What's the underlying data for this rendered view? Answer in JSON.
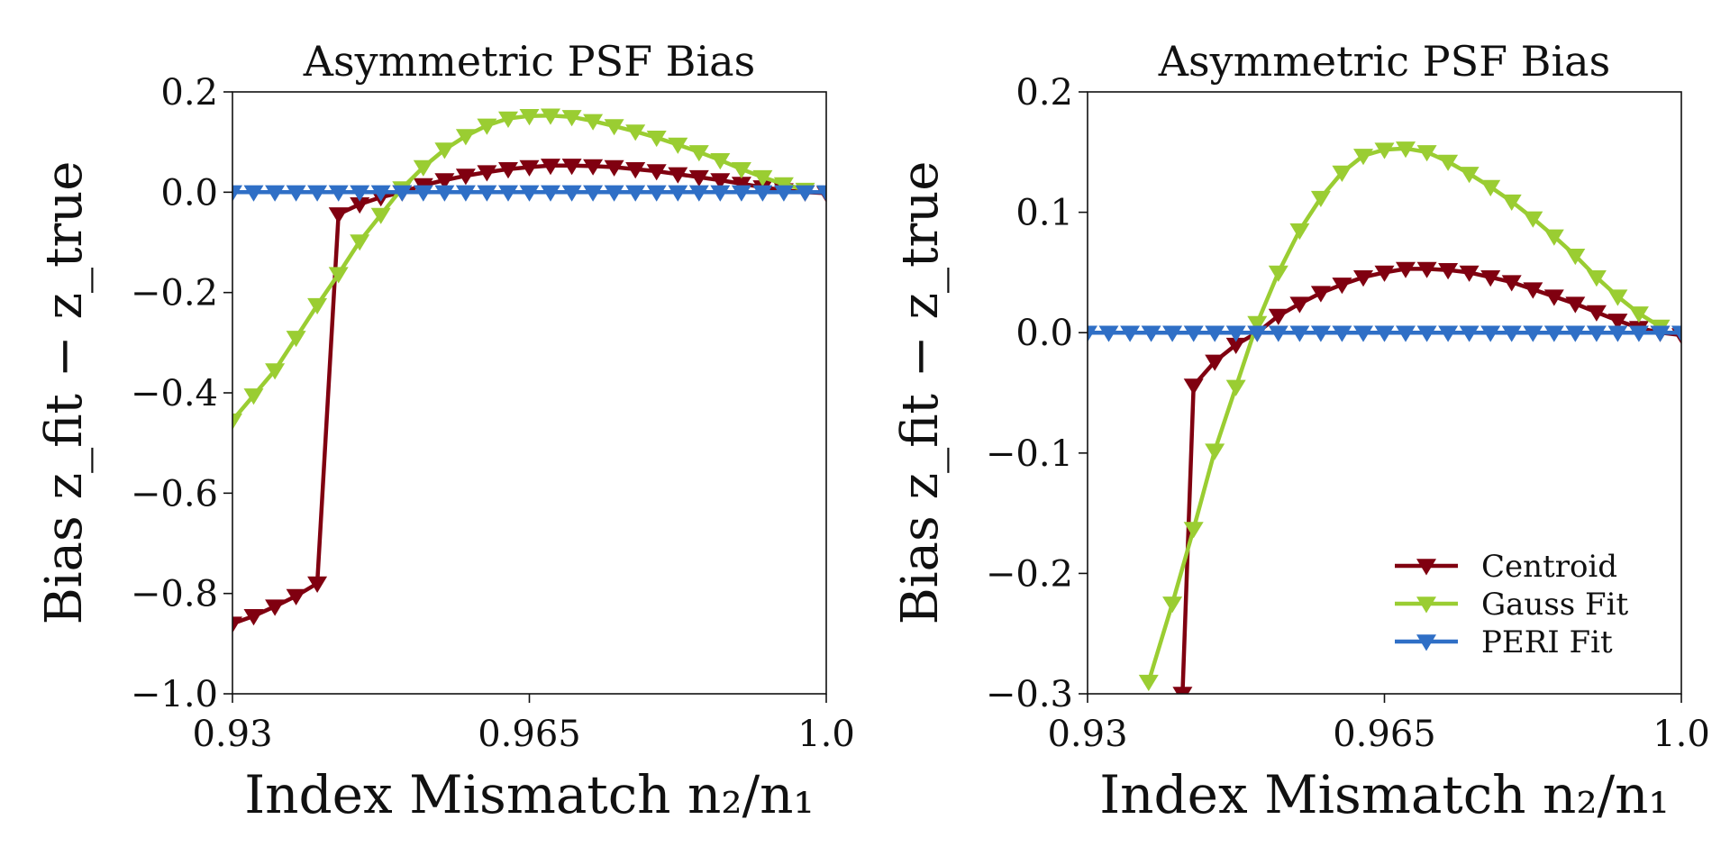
{
  "colors": {
    "Centroid": "#800010",
    "Gauss Fit": "#9ACD32",
    "PERI Fit": "#2F6FC6"
  },
  "chart_data": [
    {
      "type": "line",
      "title": "Asymmetric PSF Bias",
      "xlabel": "Index Mismatch n₂/n₁",
      "ylabel": "Bias z_fit − z_true",
      "xlim": [
        0.93,
        1.0
      ],
      "ylim": [
        -1.0,
        0.2
      ],
      "xticks": [
        "0.93",
        "0.965",
        "1.0"
      ],
      "yticks": [
        "−1.0",
        "−0.8",
        "−0.6",
        "−0.4",
        "−0.2",
        "0.0",
        "0.2"
      ],
      "ytick_values": [
        -1.0,
        -0.8,
        -0.6,
        -0.4,
        -0.2,
        0.0,
        0.2
      ],
      "marker": "triangle-down",
      "series": [
        {
          "name": "Centroid",
          "x": [
            0.93,
            0.9325,
            0.935,
            0.9375,
            0.94,
            0.9425,
            0.945,
            0.9475,
            0.95,
            0.9525,
            0.955,
            0.9575,
            0.96,
            0.9625,
            0.965,
            0.9675,
            0.97,
            0.9725,
            0.975,
            0.9775,
            0.98,
            0.9825,
            0.985,
            0.9875,
            0.99,
            0.9925,
            0.995,
            0.9975,
            1.0
          ],
          "y": [
            -0.86,
            -0.845,
            -0.826,
            -0.805,
            -0.78,
            -0.044,
            -0.024,
            -0.01,
            0.0,
            0.014,
            0.024,
            0.033,
            0.04,
            0.046,
            0.05,
            0.053,
            0.053,
            0.052,
            0.05,
            0.046,
            0.042,
            0.036,
            0.03,
            0.024,
            0.017,
            0.01,
            0.004,
            0.0,
            -0.002
          ]
        },
        {
          "name": "Gauss Fit",
          "x": [
            0.93,
            0.9325,
            0.935,
            0.9375,
            0.94,
            0.9425,
            0.945,
            0.9475,
            0.95,
            0.9525,
            0.955,
            0.9575,
            0.96,
            0.9625,
            0.965,
            0.9675,
            0.97,
            0.9725,
            0.975,
            0.9775,
            0.98,
            0.9825,
            0.985,
            0.9875,
            0.99,
            0.9925,
            0.995,
            0.9975
          ],
          "y": [
            -0.455,
            -0.405,
            -0.355,
            -0.29,
            -0.225,
            -0.163,
            -0.098,
            -0.045,
            0.008,
            0.05,
            0.085,
            0.112,
            0.133,
            0.147,
            0.152,
            0.153,
            0.15,
            0.142,
            0.132,
            0.121,
            0.109,
            0.095,
            0.08,
            0.064,
            0.046,
            0.03,
            0.016,
            0.005
          ]
        },
        {
          "name": "PERI Fit",
          "x": [
            0.93,
            0.9325,
            0.935,
            0.9375,
            0.94,
            0.9425,
            0.945,
            0.9475,
            0.95,
            0.9525,
            0.955,
            0.9575,
            0.96,
            0.9625,
            0.965,
            0.9675,
            0.97,
            0.9725,
            0.975,
            0.9775,
            0.98,
            0.9825,
            0.985,
            0.9875,
            0.99,
            0.9925,
            0.995,
            0.9975,
            1.0
          ],
          "y": [
            0,
            0,
            0,
            0,
            0,
            0,
            0,
            0,
            0,
            0,
            0,
            0,
            0,
            0,
            0,
            0,
            0,
            0,
            0,
            0,
            0,
            0,
            0,
            0,
            0,
            0,
            0,
            0,
            0
          ]
        }
      ],
      "legend": null
    },
    {
      "type": "line",
      "title": "Asymmetric PSF Bias",
      "xlabel": "Index Mismatch n₂/n₁",
      "ylabel": "Bias z_fit − z_true",
      "xlim": [
        0.93,
        1.0
      ],
      "ylim": [
        -0.3,
        0.2
      ],
      "xticks": [
        "0.93",
        "0.965",
        "1.0"
      ],
      "yticks": [
        "−0.3",
        "−0.2",
        "−0.1",
        "0.0",
        "0.1",
        "0.2"
      ],
      "ytick_values": [
        -0.3,
        -0.2,
        -0.1,
        0.0,
        0.1,
        0.2
      ],
      "marker": "triangle-down",
      "series": [
        {
          "name": "Centroid",
          "x": [
            0.9412,
            0.9425,
            0.945,
            0.9475,
            0.95,
            0.9525,
            0.955,
            0.9575,
            0.96,
            0.9625,
            0.965,
            0.9675,
            0.97,
            0.9725,
            0.975,
            0.9775,
            0.98,
            0.9825,
            0.985,
            0.9875,
            0.99,
            0.9925,
            0.995,
            0.9975,
            1.0
          ],
          "y": [
            -0.3,
            -0.044,
            -0.024,
            -0.01,
            0.0,
            0.014,
            0.024,
            0.033,
            0.04,
            0.046,
            0.05,
            0.053,
            0.053,
            0.052,
            0.05,
            0.046,
            0.042,
            0.036,
            0.03,
            0.024,
            0.017,
            0.01,
            0.004,
            0.0,
            -0.002
          ]
        },
        {
          "name": "Gauss Fit",
          "x": [
            0.9372,
            0.94,
            0.9425,
            0.945,
            0.9475,
            0.95,
            0.9525,
            0.955,
            0.9575,
            0.96,
            0.9625,
            0.965,
            0.9675,
            0.97,
            0.9725,
            0.975,
            0.9775,
            0.98,
            0.9825,
            0.985,
            0.9875,
            0.99,
            0.9925,
            0.995,
            0.9975
          ],
          "y": [
            -0.29,
            -0.225,
            -0.163,
            -0.098,
            -0.045,
            0.008,
            0.05,
            0.085,
            0.112,
            0.133,
            0.147,
            0.152,
            0.153,
            0.15,
            0.142,
            0.132,
            0.121,
            0.109,
            0.095,
            0.08,
            0.064,
            0.046,
            0.03,
            0.016,
            0.005
          ]
        },
        {
          "name": "PERI Fit",
          "x": [
            0.93,
            0.9325,
            0.935,
            0.9375,
            0.94,
            0.9425,
            0.945,
            0.9475,
            0.95,
            0.9525,
            0.955,
            0.9575,
            0.96,
            0.9625,
            0.965,
            0.9675,
            0.97,
            0.9725,
            0.975,
            0.9775,
            0.98,
            0.9825,
            0.985,
            0.9875,
            0.99,
            0.9925,
            0.995,
            0.9975,
            1.0
          ],
          "y": [
            0,
            0,
            0,
            0,
            0,
            0,
            0,
            0,
            0,
            0,
            0,
            0,
            0,
            0,
            0,
            0,
            0,
            0,
            0,
            0,
            0,
            0,
            0,
            0,
            0,
            0,
            0,
            0,
            0
          ]
        }
      ],
      "legend": "lower-right"
    }
  ]
}
